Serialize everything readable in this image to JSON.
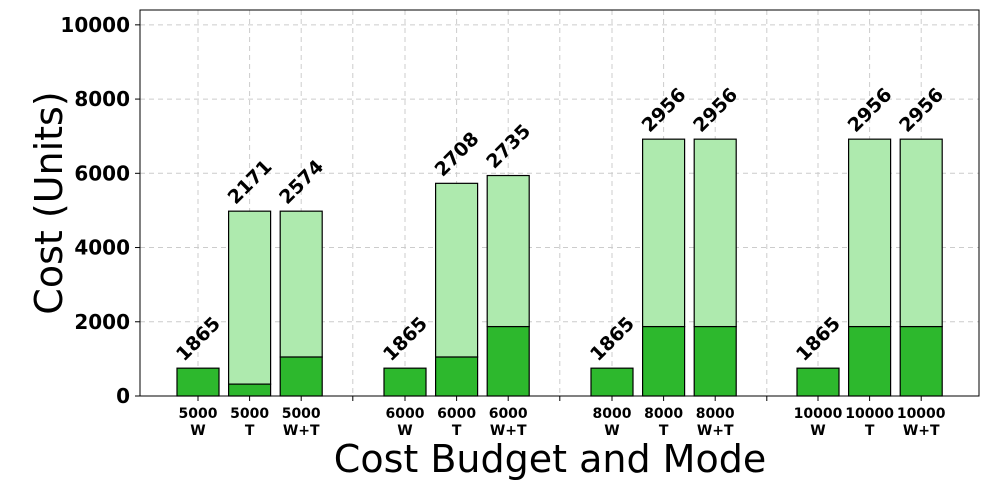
{
  "chart_data": {
    "type": "bar",
    "stacked": true,
    "title": "",
    "xlabel": "Cost Budget and Mode",
    "ylabel": "Cost (Units)",
    "ylim": [
      0,
      10400
    ],
    "yticks": [
      0,
      2000,
      4000,
      6000,
      8000,
      10000
    ],
    "grid": true,
    "groups": [
      {
        "budget": "5000",
        "bars": [
          {
            "mode": "W",
            "base": 750,
            "total": 750,
            "label": "1865"
          },
          {
            "mode": "T",
            "base": 320,
            "total": 4980,
            "label": "2171"
          },
          {
            "mode": "W+T",
            "base": 1050,
            "total": 4980,
            "label": "2574"
          }
        ]
      },
      {
        "budget": "6000",
        "bars": [
          {
            "mode": "W",
            "base": 750,
            "total": 750,
            "label": "1865"
          },
          {
            "mode": "T",
            "base": 1050,
            "total": 5730,
            "label": "2708"
          },
          {
            "mode": "W+T",
            "base": 1870,
            "total": 5940,
            "label": "2735"
          }
        ]
      },
      {
        "budget": "8000",
        "bars": [
          {
            "mode": "W",
            "base": 750,
            "total": 750,
            "label": "1865"
          },
          {
            "mode": "T",
            "base": 1870,
            "total": 6920,
            "label": "2956"
          },
          {
            "mode": "W+T",
            "base": 1870,
            "total": 6920,
            "label": "2956"
          }
        ]
      },
      {
        "budget": "10000",
        "bars": [
          {
            "mode": "W",
            "base": 750,
            "total": 750,
            "label": "1865"
          },
          {
            "mode": "T",
            "base": 1870,
            "total": 6920,
            "label": "2956"
          },
          {
            "mode": "W+T",
            "base": 1870,
            "total": 6920,
            "label": "2956"
          }
        ]
      }
    ],
    "colors": {
      "base": "#2db82d",
      "top": "#aeeaae",
      "edge": "#000000",
      "grid": "#cccccc"
    }
  }
}
